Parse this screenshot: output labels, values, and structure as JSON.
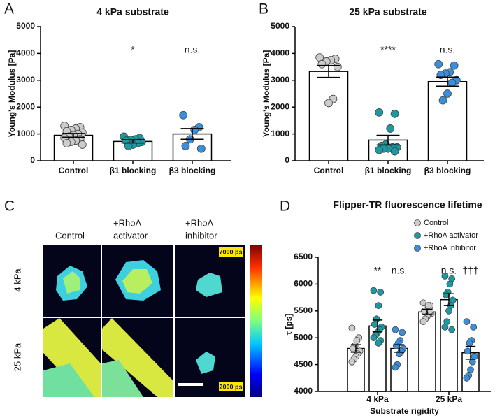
{
  "panel_letters": [
    "A",
    "B",
    "C",
    "D"
  ],
  "chart_data": [
    {
      "type": "bar",
      "title": "4 kPa substrate",
      "y_label": "Young's Modulus [Pa]",
      "categories": [
        "Control",
        "β1 blocking",
        "β3 blocking"
      ],
      "values": [
        950,
        720,
        1000
      ],
      "errors": [
        70,
        60,
        200
      ],
      "bar_color": "#ffffff",
      "point_colors": [
        "#cccccc",
        "#1b9aa3",
        "#3a8fdc"
      ],
      "points": [
        [
          1300,
          1250,
          1200,
          1150,
          1100,
          1050,
          1000,
          950,
          900,
          850,
          800,
          750,
          700,
          650,
          600
        ],
        [
          900,
          850,
          800,
          780,
          750,
          700,
          650,
          600,
          550
        ],
        [
          1700,
          1250,
          1150,
          800,
          550,
          450
        ]
      ],
      "annotations": [
        null,
        "*",
        "n.s."
      ],
      "ylim": [
        0,
        5000
      ],
      "yticks": [
        0,
        1000,
        2000,
        3000,
        4000,
        5000
      ]
    },
    {
      "type": "bar",
      "title": "25 kPa substrate",
      "y_label": "Young's Modulus [Pa]",
      "categories": [
        "Control",
        "β1 blocking",
        "β3 blocking"
      ],
      "values": [
        3330,
        770,
        2950
      ],
      "errors": [
        220,
        180,
        170
      ],
      "bar_color": "#ffffff",
      "point_colors": [
        "#cccccc",
        "#1b9aa3",
        "#3a8fdc"
      ],
      "points": [
        [
          3850,
          3800,
          3750,
          3700,
          3600,
          3500,
          2300,
          2150
        ],
        [
          1800,
          1750,
          1200,
          600,
          550,
          500,
          500,
          450,
          450,
          400,
          350
        ],
        [
          3600,
          3550,
          3300,
          3250,
          3200,
          3000,
          2900,
          2500,
          2250
        ]
      ],
      "annotations": [
        null,
        "****",
        "n.s."
      ],
      "ylim": [
        0,
        5000
      ],
      "yticks": [
        0,
        1000,
        2000,
        3000,
        4000,
        5000
      ]
    },
    {
      "type": "grouped_bar",
      "title": "Flipper-TR fluorescence lifetime",
      "y_label": "τ [ps]",
      "x_label": "Substrate rigidity",
      "categories": [
        "4 kPa",
        "25 kPa"
      ],
      "bar_color": "#ffffff",
      "legend": "top-right",
      "series": [
        {
          "name": "Control",
          "color": "#cccccc",
          "values": [
            4800,
            5480
          ],
          "errors": [
            70,
            50
          ],
          "annotations": [
            null,
            null
          ],
          "points": [
            [
              5180,
              5000,
              4950,
              4850,
              4800,
              4750,
              4700,
              4650,
              4600,
              4550
            ],
            [
              5650,
              5600,
              5550,
              5500,
              5500,
              5450,
              5450,
              5400,
              5350,
              5300,
              5500,
              5600
            ]
          ]
        },
        {
          "name": "+RhoA activator",
          "color": "#1b9aa3",
          "values": [
            5220,
            5710
          ],
          "errors": [
            110,
            110
          ],
          "annotations": [
            "**",
            "n.s."
          ],
          "points": [
            [
              5880,
              5850,
              5600,
              5350,
              5250,
              5200,
              5150,
              5100,
              5050,
              5000,
              4950,
              4900
            ],
            [
              6150,
              6100,
              6000,
              5850,
              5800,
              5700,
              5600,
              5500,
              5300,
              5200,
              5150
            ]
          ]
        },
        {
          "name": "+RhoA inhibitor",
          "color": "#3a8fdc",
          "values": [
            4800,
            4720
          ],
          "errors": [
            70,
            120
          ],
          "annotations": [
            "n.s.",
            "†††"
          ],
          "points": [
            [
              5150,
              5100,
              4950,
              4900,
              4850,
              4800,
              4750,
              4700,
              4500,
              4450
            ],
            [
              5300,
              5200,
              4950,
              4900,
              4750,
              4650,
              4550,
              4400,
              4300,
              4250
            ]
          ]
        }
      ],
      "ylim": [
        4000,
        6500
      ],
      "yticks": [
        4000,
        4500,
        5000,
        5500,
        6000,
        6500
      ]
    }
  ],
  "panel_c": {
    "columns": [
      [
        "Control"
      ],
      [
        "+RhoA",
        "activator"
      ],
      [
        "+RhoA",
        "inhibitor"
      ]
    ],
    "rows": [
      "4 kPa",
      "25 kPa"
    ],
    "colorbar_max": "7000 ps",
    "colorbar_min": "2000 ps"
  }
}
